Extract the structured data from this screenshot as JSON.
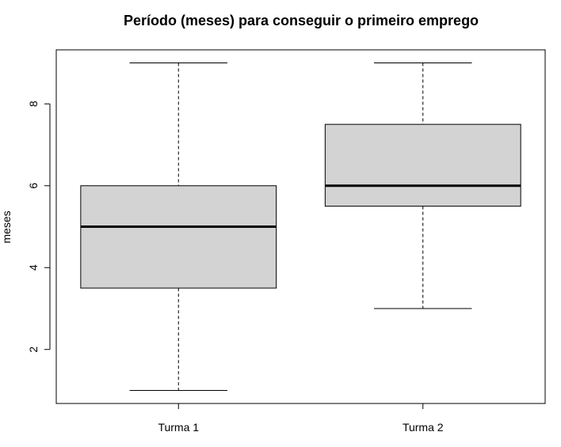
{
  "chart_data": {
    "type": "boxplot",
    "title": "Período (meses) para conseguir o primeiro emprego",
    "xlabel": "",
    "ylabel": "meses",
    "categories": [
      "Turma 1",
      "Turma 2"
    ],
    "boxes": [
      {
        "category": "Turma 1",
        "min": 1,
        "q1": 3.5,
        "median": 5,
        "q3": 6,
        "max": 9
      },
      {
        "category": "Turma 2",
        "min": 3,
        "q1": 5.5,
        "median": 6,
        "q3": 7.5,
        "max": 9
      }
    ],
    "yticks": [
      2,
      4,
      6,
      8
    ],
    "ylim": [
      0.68,
      9.32
    ],
    "grid": false,
    "box_fill": "#d3d3d3",
    "line_color": "#000000"
  }
}
